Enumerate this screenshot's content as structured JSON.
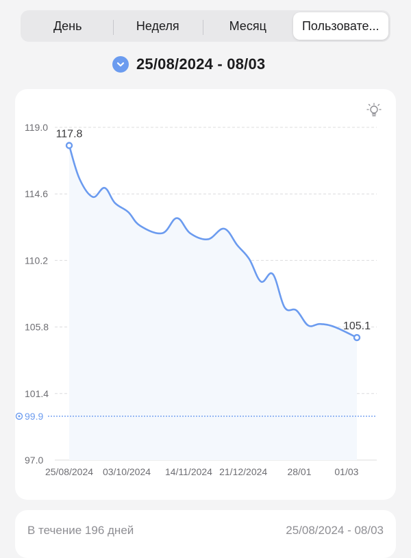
{
  "tabs": [
    {
      "label": "День",
      "active": false
    },
    {
      "label": "Неделя",
      "active": false
    },
    {
      "label": "Месяц",
      "active": false
    },
    {
      "label": "Пользовате...",
      "active": true
    }
  ],
  "date_range": {
    "icon": "chevron-down-icon",
    "label": "25/08/2024 - 08/03"
  },
  "chart_icon": "lightbulb-icon",
  "summary": {
    "period_label": "В течение 196 дней",
    "range": "25/08/2024 - 08/03"
  },
  "colors": {
    "line": "#6b9bef",
    "fill": "#f4f8fd",
    "goal": "#6b9bef",
    "accent": "#6b9bef"
  },
  "chart_data": {
    "type": "area",
    "ylim": [
      97.0,
      119.0
    ],
    "y_ticks": [
      "119.0",
      "114.6",
      "110.2",
      "105.8",
      "101.4",
      "97.0"
    ],
    "x_ticks": [
      {
        "day": 0,
        "label": "25/08/2024"
      },
      {
        "day": 39,
        "label": "03/10/2024"
      },
      {
        "day": 81,
        "label": "14/11/2024"
      },
      {
        "day": 118,
        "label": "21/12/2024"
      },
      {
        "day": 156,
        "label": "28/01"
      },
      {
        "day": 188,
        "label": "01/03"
      }
    ],
    "x_range": [
      0,
      195
    ],
    "goal": {
      "value": 99.9,
      "label": "99.9"
    },
    "start_label": "117.8",
    "end_label": "105.1",
    "points": [
      {
        "day": 0,
        "value": 117.8
      },
      {
        "day": 7,
        "value": 115.6
      },
      {
        "day": 16,
        "value": 114.4
      },
      {
        "day": 24,
        "value": 115.0
      },
      {
        "day": 31,
        "value": 114.0
      },
      {
        "day": 40,
        "value": 113.4
      },
      {
        "day": 48,
        "value": 112.5
      },
      {
        "day": 63,
        "value": 112.0
      },
      {
        "day": 73,
        "value": 113.0
      },
      {
        "day": 82,
        "value": 112.0
      },
      {
        "day": 94,
        "value": 111.6
      },
      {
        "day": 105,
        "value": 112.3
      },
      {
        "day": 114,
        "value": 111.2
      },
      {
        "day": 122,
        "value": 110.3
      },
      {
        "day": 130,
        "value": 108.8
      },
      {
        "day": 138,
        "value": 109.3
      },
      {
        "day": 146,
        "value": 107.1
      },
      {
        "day": 154,
        "value": 106.9
      },
      {
        "day": 162,
        "value": 105.9
      },
      {
        "day": 170,
        "value": 106.0
      },
      {
        "day": 180,
        "value": 105.8
      },
      {
        "day": 195,
        "value": 105.1
      }
    ]
  }
}
